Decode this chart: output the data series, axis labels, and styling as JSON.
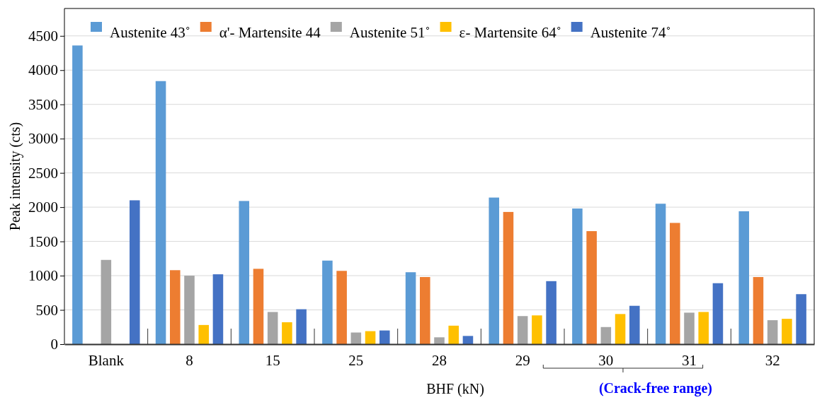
{
  "chart_data": {
    "type": "bar",
    "xlabel": "BHF (kN)",
    "ylabel": "Peak intensity (cts)",
    "categories": [
      "Blank",
      "8",
      "15",
      "25",
      "28",
      "29",
      "30",
      "31",
      "32"
    ],
    "series": [
      {
        "name": "Austenite 43˚",
        "color": "#5b9bd5",
        "values": [
          4360,
          3840,
          2090,
          1220,
          1050,
          2140,
          1980,
          2050,
          1940
        ]
      },
      {
        "name": "α'- Martensite  44",
        "color": "#ed7d31",
        "values": [
          0,
          1080,
          1100,
          1070,
          980,
          1930,
          1650,
          1770,
          980
        ]
      },
      {
        "name": "Austenite 51˚",
        "color": "#a5a5a5",
        "values": [
          1230,
          1000,
          470,
          170,
          100,
          410,
          250,
          460,
          350
        ]
      },
      {
        "name": "ε- Martensite  64˚",
        "color": "#ffc000",
        "values": [
          0,
          280,
          320,
          190,
          270,
          420,
          440,
          470,
          370
        ]
      },
      {
        "name": "Austenite 74˚",
        "color": "#4472c4",
        "values": [
          2100,
          1020,
          510,
          200,
          120,
          920,
          560,
          890,
          730
        ]
      }
    ],
    "ylim": [
      0,
      4900
    ],
    "yticks": [
      0,
      500,
      1000,
      1500,
      2000,
      2500,
      3000,
      3500,
      4000,
      4500
    ],
    "grid": "y",
    "legend": "top",
    "annotations": [
      "(Crack-free range)"
    ]
  }
}
